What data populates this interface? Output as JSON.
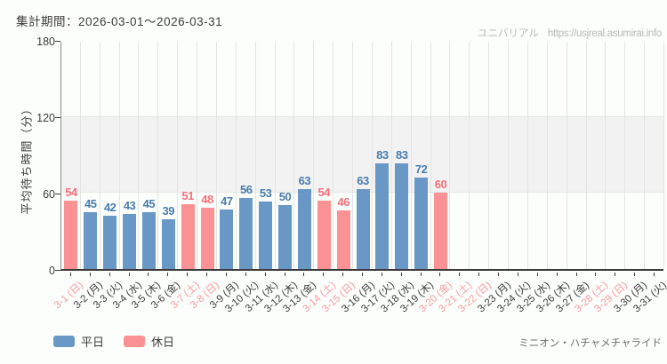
{
  "header": {
    "period_label": "集計期間：2026-03-01〜2026-03-31",
    "watermark_name": "ユニバリアル",
    "watermark_url": "https://usjreal.asumirai.info"
  },
  "chart_data": {
    "type": "bar",
    "title": "",
    "xlabel": "",
    "ylabel": "平均待ち時間（分）",
    "ylim": [
      0,
      180
    ],
    "yticks": [
      0,
      60,
      120,
      180
    ],
    "shaded_band": [
      60,
      120
    ],
    "grid": "vertical",
    "legend_position": "bottom-left",
    "categories": [
      "3-1 (日)",
      "3-2 (月)",
      "3-3 (火)",
      "3-4 (水)",
      "3-5 (木)",
      "3-6 (金)",
      "3-7 (土)",
      "3-8 (日)",
      "3-9 (月)",
      "3-10 (火)",
      "3-11 (水)",
      "3-12 (木)",
      "3-13 (金)",
      "3-14 (土)",
      "3-15 (日)",
      "3-16 (月)",
      "3-17 (火)",
      "3-18 (水)",
      "3-19 (木)",
      "3-20 (金)",
      "3-21 (土)",
      "3-22 (日)",
      "3-23 (月)",
      "3-24 (火)",
      "3-25 (水)",
      "3-26 (木)",
      "3-27 (金)",
      "3-28 (土)",
      "3-29 (日)",
      "3-30 (月)",
      "3-31 (火)"
    ],
    "day_types": [
      "holiday",
      "weekday",
      "weekday",
      "weekday",
      "weekday",
      "weekday",
      "holiday",
      "holiday",
      "weekday",
      "weekday",
      "weekday",
      "weekday",
      "weekday",
      "holiday",
      "holiday",
      "weekday",
      "weekday",
      "weekday",
      "weekday",
      "holiday",
      "holiday",
      "holiday",
      "weekday",
      "weekday",
      "weekday",
      "weekday",
      "weekday",
      "holiday",
      "holiday",
      "weekday",
      "weekday"
    ],
    "values": [
      54,
      45,
      42,
      43,
      45,
      39,
      51,
      48,
      47,
      56,
      53,
      50,
      63,
      54,
      46,
      63,
      83,
      83,
      72,
      60,
      null,
      null,
      null,
      null,
      null,
      null,
      null,
      null,
      null,
      null,
      null
    ],
    "legend": [
      {
        "label": "平日",
        "type": "weekday"
      },
      {
        "label": "休日",
        "type": "holiday"
      }
    ],
    "colors": {
      "weekday_bar": "#6998c7",
      "holiday_bar": "#fa9294",
      "weekday_value_label": "#4a7dad",
      "holiday_value_label": "#f3707a",
      "weekday_tick_label": "#3b3b3b",
      "holiday_tick_label": "#f79a9e"
    }
  },
  "footer": {
    "attraction_label": "ミニオン・ハチャメチャライド"
  }
}
